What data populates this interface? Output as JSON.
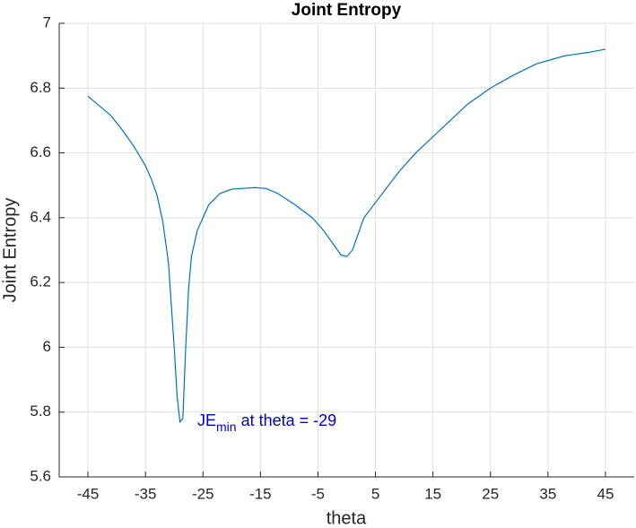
{
  "chart_data": {
    "type": "line",
    "title": "Joint Entropy",
    "x_label": "theta",
    "y_label": "Joint Entropy",
    "x": [
      -45,
      -43,
      -41,
      -39,
      -37,
      -35,
      -34,
      -33,
      -32,
      -31,
      -30,
      -29.5,
      -29,
      -28.5,
      -28,
      -27.5,
      -27,
      -26,
      -25,
      -24,
      -22,
      -20,
      -16,
      -14,
      -12,
      -9,
      -6,
      -4,
      -2,
      -1,
      0,
      1,
      3,
      6,
      9,
      12,
      15,
      18,
      21,
      25,
      29,
      33,
      38,
      42,
      45
    ],
    "series": [
      {
        "name": "Joint Entropy",
        "color": "#0072bd",
        "values": [
          6.775,
          6.745,
          6.715,
          6.67,
          6.62,
          6.56,
          6.52,
          6.47,
          6.39,
          6.26,
          6.0,
          5.85,
          5.77,
          5.78,
          6.0,
          6.18,
          6.28,
          6.36,
          6.4,
          6.44,
          6.475,
          6.488,
          6.493,
          6.49,
          6.475,
          6.44,
          6.4,
          6.36,
          6.31,
          6.285,
          6.28,
          6.3,
          6.4,
          6.47,
          6.54,
          6.6,
          6.65,
          6.7,
          6.75,
          6.8,
          6.84,
          6.875,
          6.9,
          6.91,
          6.92
        ]
      }
    ],
    "xlim": [
      -50,
      50
    ],
    "ylim": [
      5.6,
      7
    ],
    "xticks": [
      -45,
      -35,
      -25,
      -15,
      -5,
      5,
      15,
      25,
      35,
      45
    ],
    "yticks": [
      5.6,
      5.8,
      6,
      6.2,
      6.4,
      6.6,
      6.8,
      7
    ],
    "grid": true,
    "annotation": {
      "text": "JE",
      "subscript": "min",
      "suffix": " at theta = -29",
      "color": "#0000cd"
    }
  }
}
